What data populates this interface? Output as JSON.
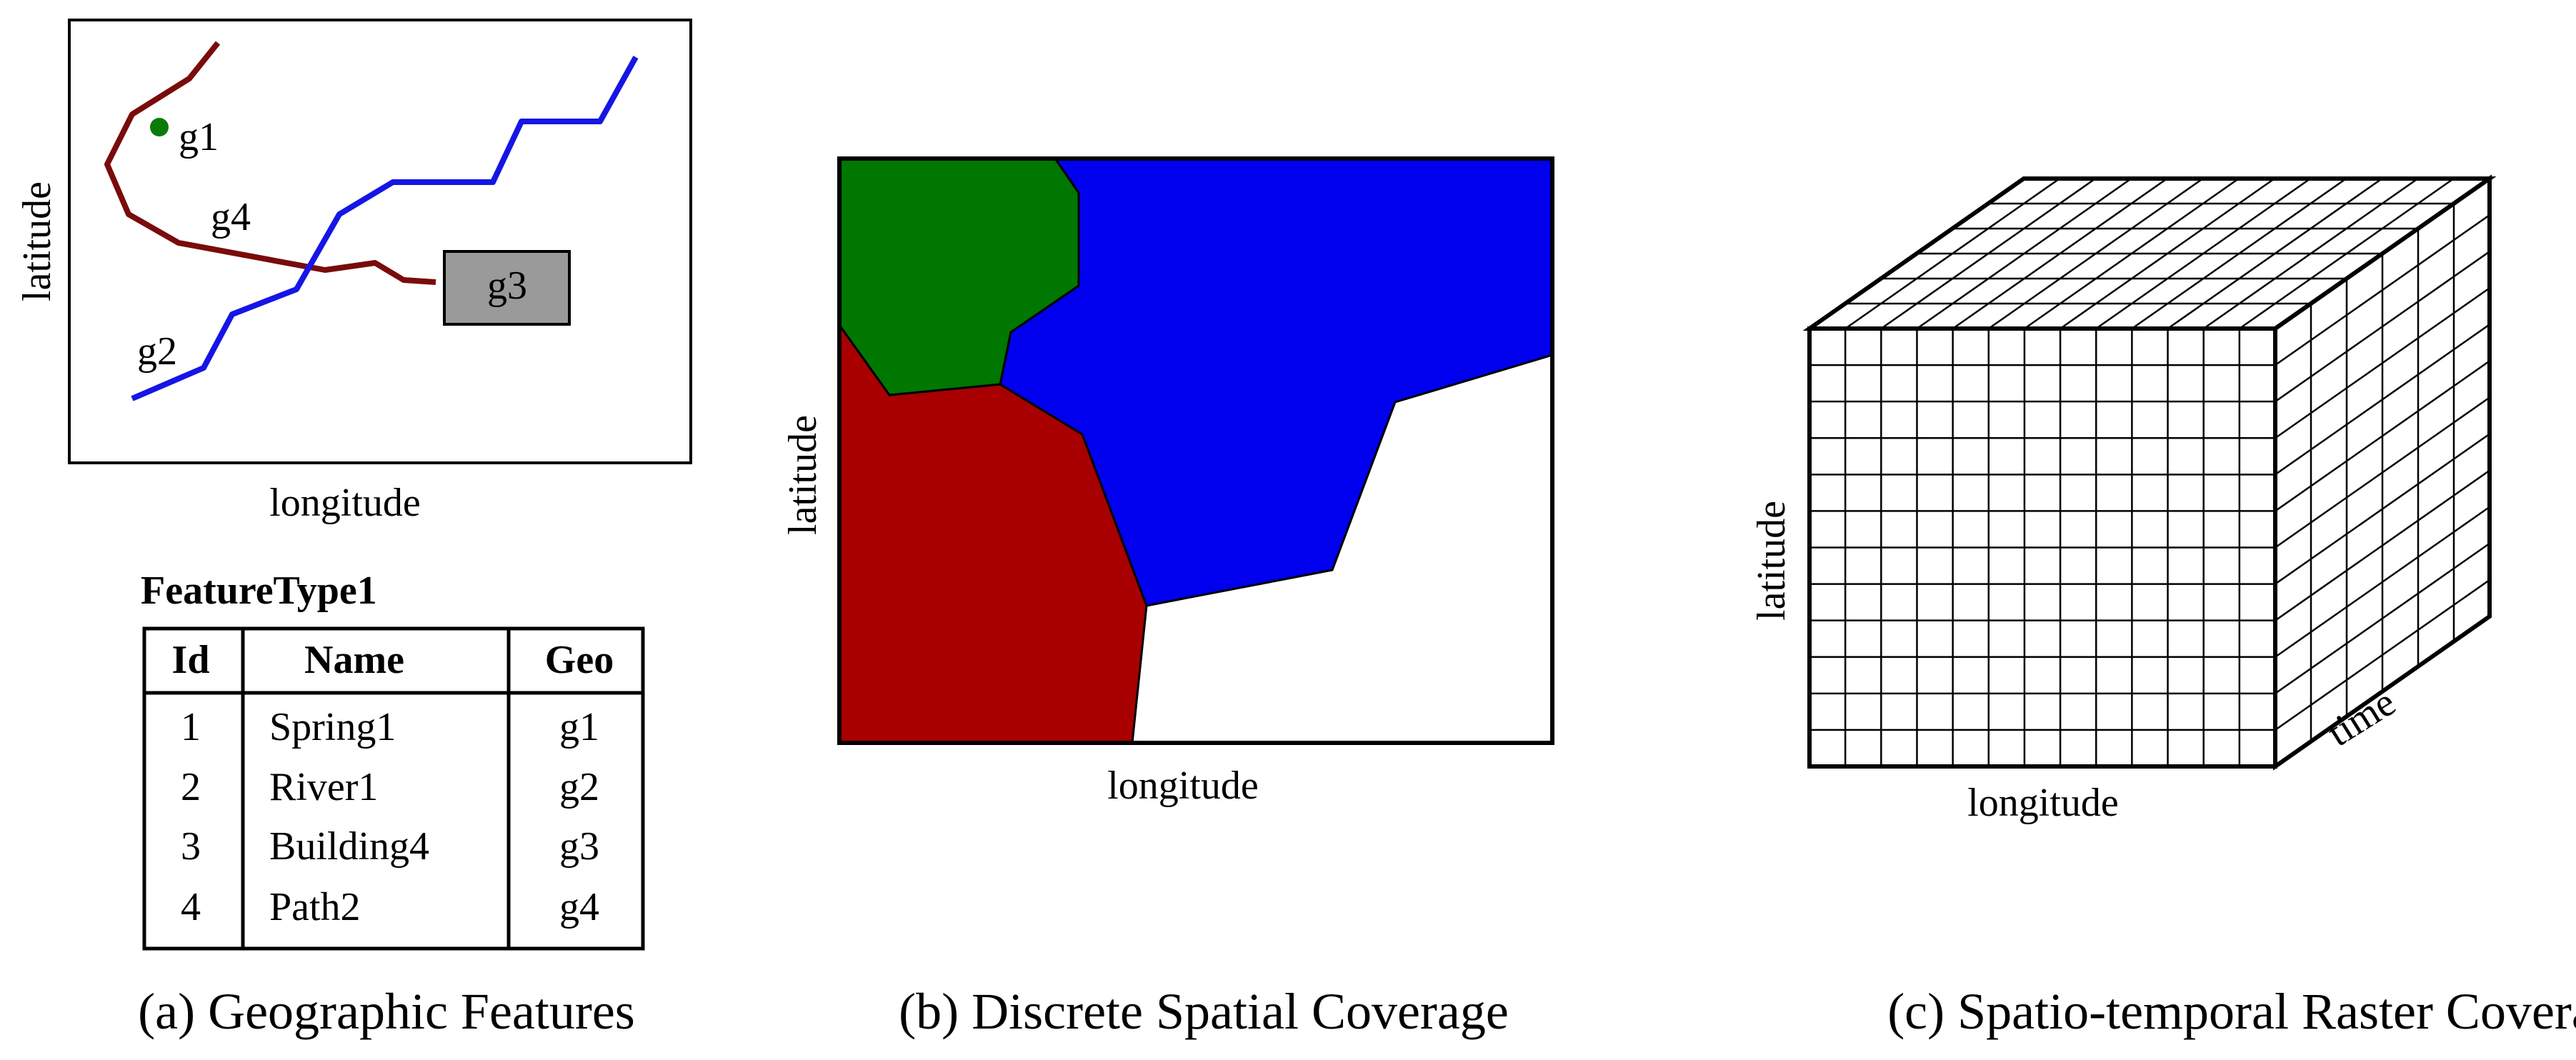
{
  "panel_a": {
    "caption": "(a) Geographic Features",
    "xlabel": "longitude",
    "ylabel": "latitude",
    "labels": {
      "g1": "g1",
      "g2": "g2",
      "g3": "g3",
      "g4": "g4"
    },
    "table": {
      "title": "FeatureType1",
      "headers": [
        "Id",
        "Name",
        "Geo"
      ],
      "rows": [
        [
          "1",
          "Spring1",
          "g1"
        ],
        [
          "2",
          "River1",
          "g2"
        ],
        [
          "3",
          "Building4",
          "g3"
        ],
        [
          "4",
          "Path2",
          "g4"
        ]
      ]
    },
    "colors": {
      "g1": "#0a7a0a",
      "g2": "#1515e6",
      "g3": "#9a9a9a",
      "g4": "#7a0b0b"
    }
  },
  "panel_b": {
    "caption": "(b) Discrete Spatial Coverage",
    "xlabel": "longitude",
    "ylabel": "latitude",
    "colors": {
      "green": "#007700",
      "blue": "#0000ee",
      "red": "#a80000",
      "white": "#ffffff"
    }
  },
  "panel_c": {
    "caption": "(c) Spatio-temporal Raster Coverage",
    "xlabel": "longitude",
    "ylabel": "latitude",
    "zlabel": "time",
    "grid": {
      "cols": 13,
      "rows": 12,
      "depth": 6
    }
  }
}
